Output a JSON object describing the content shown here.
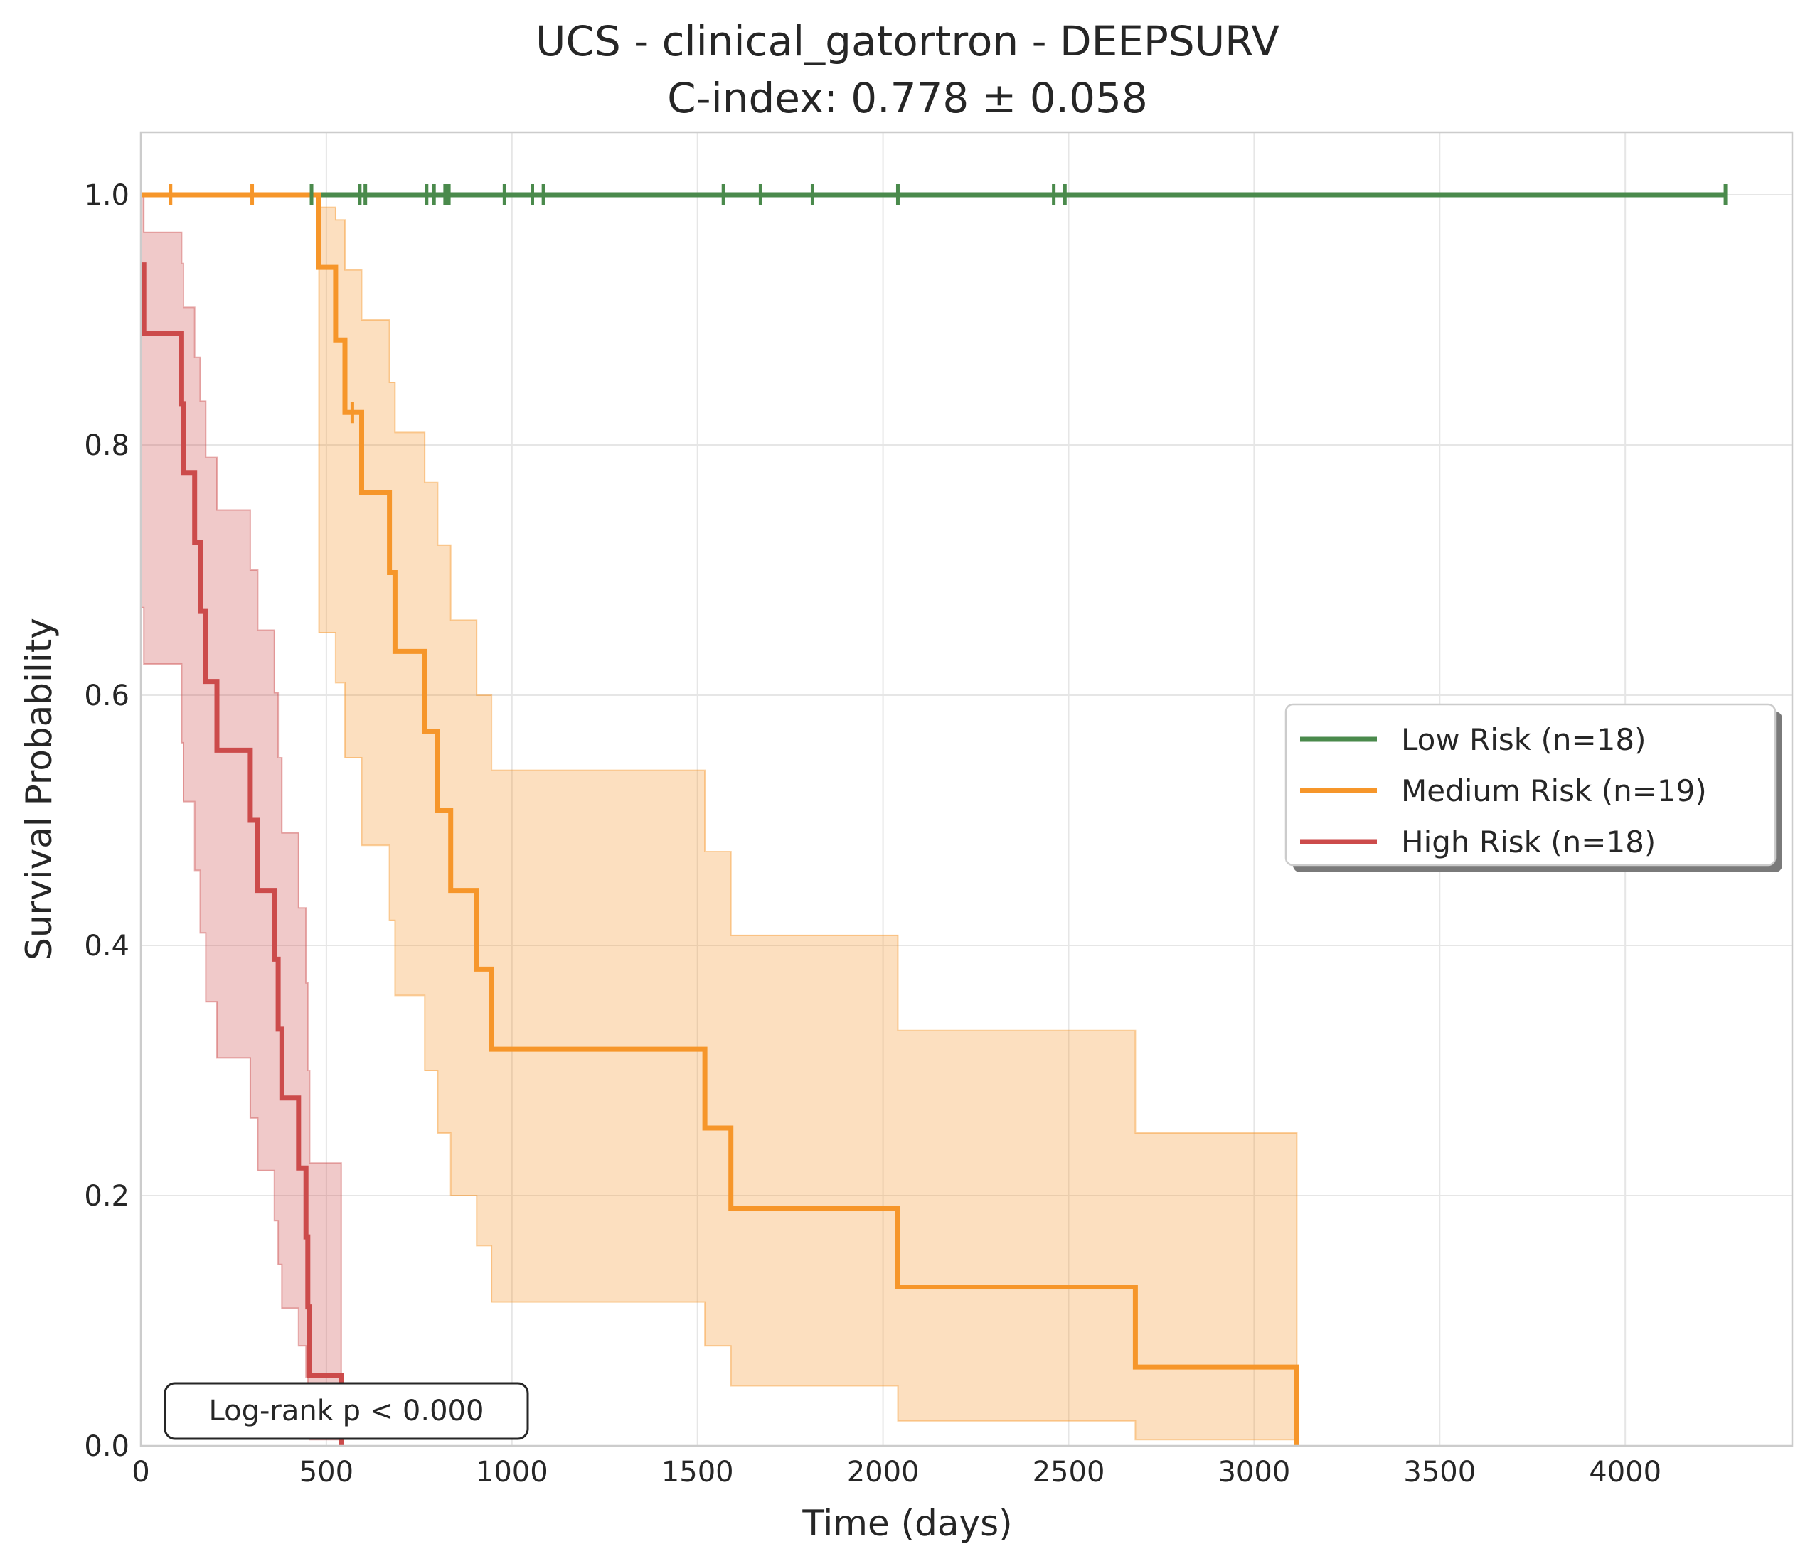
{
  "chart_data": {
    "type": "line",
    "subtype": "kaplan-meier",
    "title": "UCS - clinical_gatortron - DEEPSURV",
    "subtitle": "C-index: 0.778 ± 0.058",
    "xlabel": "Time (days)",
    "ylabel": "Survival Probability",
    "xlim": [
      0,
      4450
    ],
    "ylim": [
      0,
      1.05
    ],
    "xticks": [
      0,
      500,
      1000,
      1500,
      2000,
      2500,
      3000,
      3500,
      4000
    ],
    "yticks": [
      0.0,
      0.2,
      0.4,
      0.6,
      0.8,
      1.0
    ],
    "xtick_labels": [
      "0",
      "500",
      "1000",
      "1500",
      "2000",
      "2500",
      "3000",
      "3500",
      "4000"
    ],
    "ytick_labels": [
      "0.0",
      "0.2",
      "0.4",
      "0.6",
      "0.8",
      "1.0"
    ],
    "grid": true,
    "legend_position": "center-right",
    "annotation": "Log-rank p < 0.000",
    "series": [
      {
        "name": "Low Risk (n=18)",
        "color": "#4a8a4c",
        "steps": [
          [
            0,
            1.0
          ],
          [
            4270,
            1.0
          ]
        ],
        "ci": [],
        "censor_times": [
          460,
          590,
          605,
          770,
          790,
          820,
          830,
          980,
          1055,
          1085,
          1570,
          1670,
          1810,
          2040,
          2460,
          2490,
          4270
        ]
      },
      {
        "name": "Medium Risk (n=19)",
        "color": "#f6962a",
        "steps": [
          [
            0,
            1.0
          ],
          [
            480,
            0.942
          ],
          [
            525,
            0.884
          ],
          [
            550,
            0.826
          ],
          [
            595,
            0.762
          ],
          [
            670,
            0.698
          ],
          [
            685,
            0.635
          ],
          [
            765,
            0.571
          ],
          [
            800,
            0.508
          ],
          [
            835,
            0.444
          ],
          [
            905,
            0.381
          ],
          [
            945,
            0.317
          ],
          [
            1520,
            0.254
          ],
          [
            1590,
            0.19
          ],
          [
            2040,
            0.127
          ],
          [
            2680,
            0.063
          ],
          [
            3115,
            0.0
          ]
        ],
        "ci": [
          [
            0,
            1.0,
            1.0
          ],
          [
            480,
            0.65,
            0.99
          ],
          [
            525,
            0.61,
            0.98
          ],
          [
            550,
            0.55,
            0.94
          ],
          [
            595,
            0.48,
            0.9
          ],
          [
            670,
            0.42,
            0.85
          ],
          [
            685,
            0.36,
            0.81
          ],
          [
            765,
            0.3,
            0.77
          ],
          [
            800,
            0.25,
            0.72
          ],
          [
            835,
            0.2,
            0.66
          ],
          [
            905,
            0.16,
            0.6
          ],
          [
            945,
            0.115,
            0.54
          ],
          [
            1520,
            0.08,
            0.475
          ],
          [
            1590,
            0.048,
            0.408
          ],
          [
            2040,
            0.02,
            0.332
          ],
          [
            2680,
            0.005,
            0.25
          ],
          [
            3115,
            0.0,
            0.0
          ]
        ],
        "censor_times": [
          80,
          300,
          570
        ]
      },
      {
        "name": "High Risk (n=18)",
        "color": "#cc4b4b",
        "steps": [
          [
            0,
            0.944
          ],
          [
            8,
            0.889
          ],
          [
            110,
            0.833
          ],
          [
            115,
            0.778
          ],
          [
            145,
            0.722
          ],
          [
            160,
            0.667
          ],
          [
            175,
            0.611
          ],
          [
            205,
            0.556
          ],
          [
            295,
            0.5
          ],
          [
            315,
            0.444
          ],
          [
            360,
            0.389
          ],
          [
            370,
            0.333
          ],
          [
            380,
            0.278
          ],
          [
            425,
            0.222
          ],
          [
            445,
            0.167
          ],
          [
            450,
            0.111
          ],
          [
            455,
            0.056
          ],
          [
            540,
            0.0
          ]
        ],
        "ci": [
          [
            0,
            0.67,
            1.0
          ],
          [
            8,
            0.625,
            0.97
          ],
          [
            110,
            0.562,
            0.945
          ],
          [
            115,
            0.515,
            0.91
          ],
          [
            145,
            0.46,
            0.87
          ],
          [
            160,
            0.41,
            0.835
          ],
          [
            175,
            0.355,
            0.79
          ],
          [
            205,
            0.31,
            0.748
          ],
          [
            295,
            0.262,
            0.7
          ],
          [
            315,
            0.22,
            0.652
          ],
          [
            360,
            0.18,
            0.602
          ],
          [
            370,
            0.145,
            0.55
          ],
          [
            380,
            0.11,
            0.49
          ],
          [
            425,
            0.08,
            0.43
          ],
          [
            445,
            0.055,
            0.37
          ],
          [
            450,
            0.03,
            0.3
          ],
          [
            455,
            0.005,
            0.226
          ],
          [
            540,
            0.0,
            0.0
          ]
        ],
        "censor_times": []
      }
    ]
  }
}
